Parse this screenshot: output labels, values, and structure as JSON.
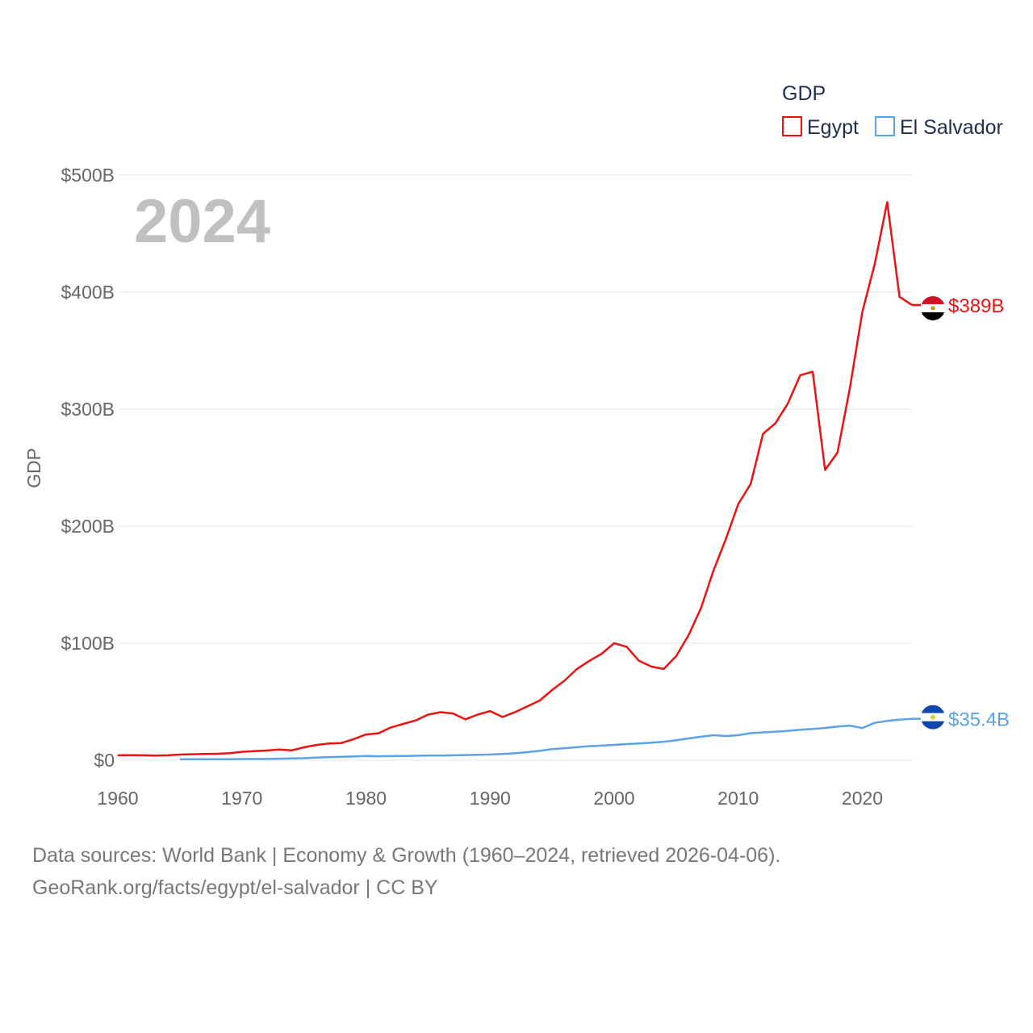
{
  "chart_data": {
    "type": "line",
    "title": "",
    "year_overlay": "2024",
    "xlabel": "",
    "ylabel": "GDP",
    "xlim": [
      1960,
      2024
    ],
    "ylim": [
      0,
      500
    ],
    "y_unit": "billion USD",
    "x_ticks": [
      1960,
      1970,
      1980,
      1990,
      2000,
      2010,
      2020
    ],
    "y_ticks": [
      {
        "value": 0,
        "label": "$0"
      },
      {
        "value": 100,
        "label": "$100B"
      },
      {
        "value": 200,
        "label": "$200B"
      },
      {
        "value": 300,
        "label": "$300B"
      },
      {
        "value": 400,
        "label": "$400B"
      },
      {
        "value": 500,
        "label": "$500B"
      }
    ],
    "legend": {
      "title": "GDP",
      "position": "top-right"
    },
    "grid": true,
    "series": [
      {
        "name": "Egypt",
        "color": "#ee1111",
        "end_label": "$389B",
        "flag": "egypt",
        "x": [
          1960,
          1961,
          1962,
          1963,
          1964,
          1965,
          1966,
          1967,
          1968,
          1969,
          1970,
          1971,
          1972,
          1973,
          1974,
          1975,
          1976,
          1977,
          1978,
          1979,
          1980,
          1981,
          1982,
          1983,
          1984,
          1985,
          1986,
          1987,
          1988,
          1989,
          1990,
          1991,
          1992,
          1993,
          1994,
          1995,
          1996,
          1997,
          1998,
          1999,
          2000,
          2001,
          2002,
          2003,
          2004,
          2005,
          2006,
          2007,
          2008,
          2009,
          2010,
          2011,
          2012,
          2013,
          2014,
          2015,
          2016,
          2017,
          2018,
          2019,
          2020,
          2021,
          2022,
          2023,
          2024
        ],
        "values": [
          4.2,
          4.3,
          4.2,
          4.0,
          4.2,
          4.8,
          5.1,
          5.4,
          5.5,
          6.0,
          7.2,
          7.7,
          8.3,
          9.2,
          8.4,
          11.0,
          13.0,
          14.3,
          14.7,
          18.0,
          22.0,
          23.0,
          28.0,
          31.0,
          34.0,
          39.0,
          41.0,
          40.0,
          35.0,
          39.0,
          42.0,
          37.0,
          41.0,
          46.0,
          51.0,
          60.0,
          68.0,
          78.0,
          85.0,
          91.0,
          100.0,
          97.0,
          85.0,
          80.0,
          78.0,
          89.0,
          107.0,
          130.0,
          162.0,
          189.0,
          219.0,
          236.0,
          279.0,
          288.0,
          305.0,
          329.0,
          332.0,
          248.0,
          263.0,
          318.0,
          383.0,
          424.0,
          477.0,
          396.0,
          389.0
        ]
      },
      {
        "name": "El Salvador",
        "color": "#5ba3e6",
        "end_label": "$35.4B",
        "flag": "el-salvador",
        "x": [
          1965,
          1966,
          1967,
          1968,
          1969,
          1970,
          1971,
          1972,
          1973,
          1974,
          1975,
          1976,
          1977,
          1978,
          1979,
          1980,
          1981,
          1982,
          1983,
          1984,
          1985,
          1986,
          1987,
          1988,
          1989,
          1990,
          1991,
          1992,
          1993,
          1994,
          1995,
          1996,
          1997,
          1998,
          1999,
          2000,
          2001,
          2002,
          2003,
          2004,
          2005,
          2006,
          2007,
          2008,
          2009,
          2010,
          2011,
          2012,
          2013,
          2014,
          2015,
          2016,
          2017,
          2018,
          2019,
          2020,
          2021,
          2022,
          2023,
          2024
        ],
        "values": [
          0.8,
          0.9,
          0.9,
          0.9,
          0.9,
          1.0,
          1.0,
          1.1,
          1.3,
          1.5,
          1.7,
          2.2,
          2.7,
          2.9,
          3.2,
          3.6,
          3.4,
          3.5,
          3.6,
          3.8,
          3.9,
          4.0,
          4.2,
          4.4,
          4.6,
          4.8,
          5.3,
          5.9,
          6.9,
          8.0,
          9.5,
          10.3,
          11.1,
          12.0,
          12.5,
          13.1,
          13.8,
          14.3,
          15.0,
          15.8,
          17.1,
          18.6,
          20.1,
          21.4,
          20.7,
          21.4,
          23.1,
          23.8,
          24.4,
          25.1,
          26.0,
          26.7,
          27.6,
          28.8,
          29.6,
          27.5,
          31.9,
          33.6,
          34.6,
          35.4
        ]
      }
    ]
  },
  "source": {
    "line1": "Data sources: World Bank | Economy & Growth (1960–2024, retrieved 2026-04-06).",
    "line2": "GeoRank.org/facts/egypt/el-salvador | CC BY"
  }
}
